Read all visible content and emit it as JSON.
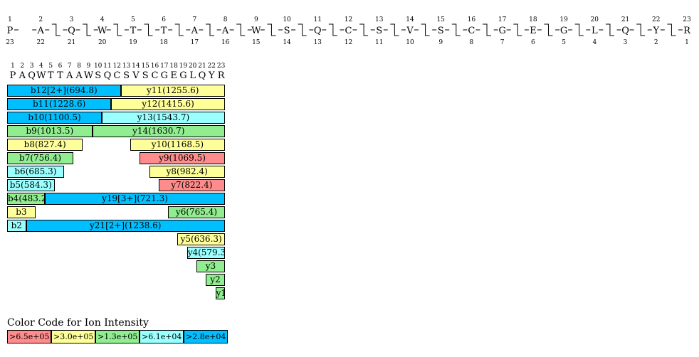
{
  "colors": {
    "red": "#ff8c8c",
    "yellow": "#ffff99",
    "green": "#90ee90",
    "cyan": "#99ffff",
    "blue": "#00bfff"
  },
  "sequence": [
    "P",
    "A",
    "Q",
    "W",
    "T",
    "T",
    "A",
    "A",
    "W",
    "S",
    "Q",
    "C",
    "S",
    "V",
    "S",
    "C",
    "G",
    "E",
    "G",
    "L",
    "Q",
    "Y",
    "R"
  ],
  "sequence_map": {
    "b_breaks_after": [
      2,
      3,
      4,
      5,
      6,
      7,
      8,
      9,
      10,
      11,
      12,
      13,
      14,
      15,
      16,
      17,
      18,
      19,
      20,
      21,
      22
    ],
    "y_breaks_after": [
      2,
      3,
      4,
      5,
      6,
      7,
      8,
      9,
      10,
      11,
      12,
      13,
      14,
      15,
      16,
      17,
      18,
      19,
      20,
      21,
      22
    ]
  },
  "header": {
    "numbers": [
      "1",
      "2",
      "3",
      "4",
      "5",
      "6",
      "7",
      "8",
      "9",
      "10",
      "11",
      "12",
      "13",
      "14",
      "15",
      "16",
      "17",
      "18",
      "19",
      "20",
      "21",
      "22",
      "23"
    ]
  },
  "b_ions": [
    {
      "label": "b12[2+](694.8)",
      "start": 1,
      "end": 12,
      "color": "blue"
    },
    {
      "label": "b11(1228.6)",
      "start": 1,
      "end": 11,
      "color": "blue"
    },
    {
      "label": "b10(1100.5)",
      "start": 1,
      "end": 10,
      "color": "blue"
    },
    {
      "label": "b9(1013.5)",
      "start": 1,
      "end": 9,
      "color": "green"
    },
    {
      "label": "b8(827.4)",
      "start": 1,
      "end": 8,
      "color": "yellow"
    },
    {
      "label": "b7(756.4)",
      "start": 1,
      "end": 7,
      "color": "green"
    },
    {
      "label": "b6(685.3)",
      "start": 1,
      "end": 6,
      "color": "cyan"
    },
    {
      "label": "b5(584.3)",
      "start": 1,
      "end": 5,
      "color": "cyan"
    },
    {
      "label": "b4(483.2)",
      "start": 1,
      "end": 4,
      "color": "green"
    },
    {
      "label": "b3",
      "start": 1,
      "end": 3,
      "color": "yellow"
    },
    {
      "label": "b2",
      "start": 1,
      "end": 2,
      "color": "cyan"
    }
  ],
  "y_ions": [
    {
      "label": "y11(1255.6)",
      "start": 13,
      "end": 23,
      "color": "yellow"
    },
    {
      "label": "y12(1415.6)",
      "start": 12,
      "end": 23,
      "color": "yellow"
    },
    {
      "label": "y13(1543.7)",
      "start": 11,
      "end": 23,
      "color": "cyan"
    },
    {
      "label": "y14(1630.7)",
      "start": 10,
      "end": 23,
      "color": "green"
    },
    {
      "label": "y10(1168.5)",
      "start": 14,
      "end": 23,
      "color": "yellow"
    },
    {
      "label": "y9(1069.5)",
      "start": 15,
      "end": 23,
      "color": "red"
    },
    {
      "label": "y8(982.4)",
      "start": 16,
      "end": 23,
      "color": "yellow"
    },
    {
      "label": "y7(822.4)",
      "start": 17,
      "end": 23,
      "color": "red"
    },
    {
      "label": "y19[3+](721.3)",
      "start": 5,
      "end": 23,
      "color": "blue"
    },
    {
      "label": "y6(765.4)",
      "start": 18,
      "end": 23,
      "color": "green"
    },
    {
      "label": "y21[2+](1238.6)",
      "start": 3,
      "end": 23,
      "color": "blue"
    },
    {
      "label": "y5(636.3)",
      "start": 19,
      "end": 23,
      "color": "yellow"
    },
    {
      "label": "y4(579.3)",
      "start": 20,
      "end": 23,
      "color": "cyan"
    },
    {
      "label": "y3",
      "start": 21,
      "end": 23,
      "color": "green"
    },
    {
      "label": "y2",
      "start": 22,
      "end": 23,
      "color": "green"
    },
    {
      "label": "y1",
      "start": 23,
      "end": 23,
      "color": "green"
    }
  ],
  "legend": {
    "title": "Color Code for Ion Intensity",
    "items": [
      {
        "label": ">6.5e+05",
        "color": "red"
      },
      {
        "label": ">3.0e+05",
        "color": "yellow"
      },
      {
        "label": ">1.3e+05",
        "color": "green"
      },
      {
        "label": ">6.1e+04",
        "color": "cyan"
      },
      {
        "label": ">2.8e+04",
        "color": "blue"
      }
    ]
  }
}
